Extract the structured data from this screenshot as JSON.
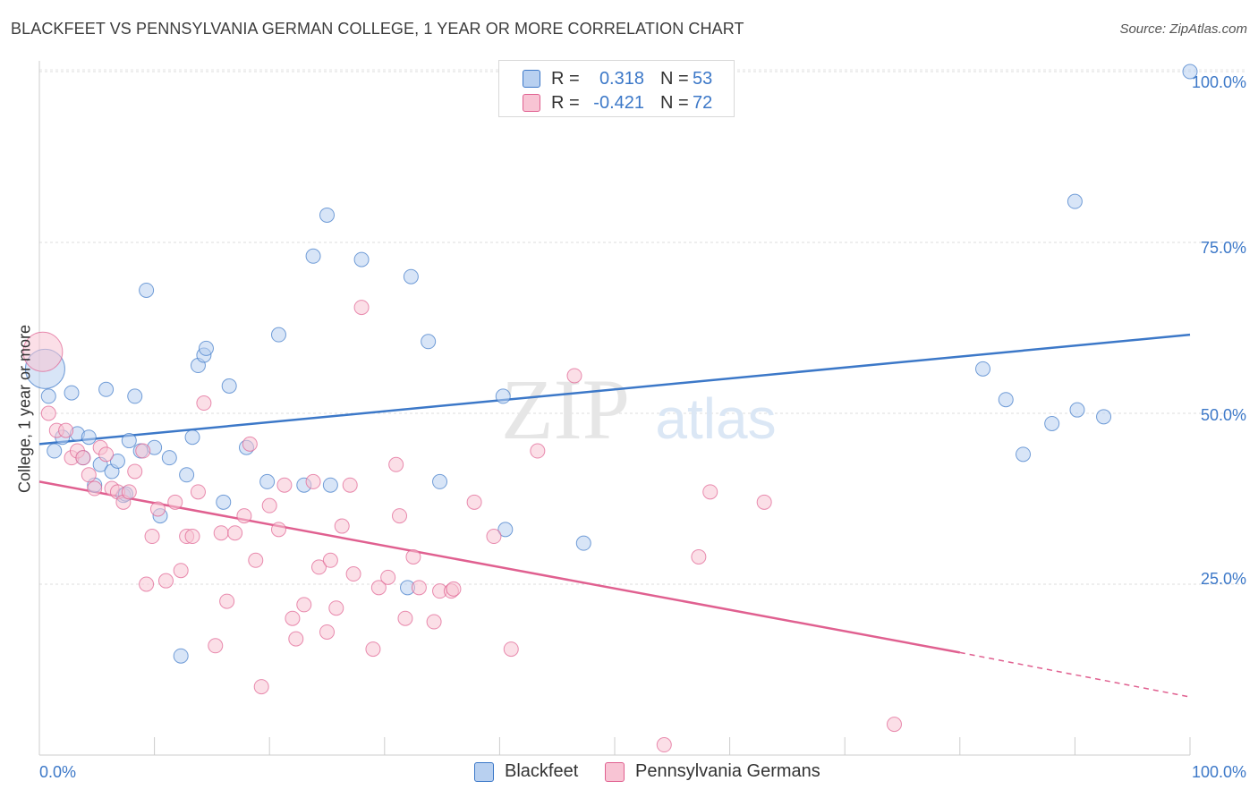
{
  "title": "BLACKFEET VS PENNSYLVANIA GERMAN COLLEGE, 1 YEAR OR MORE CORRELATION CHART",
  "source": "Source: ZipAtlas.com",
  "watermark": {
    "zip": "ZIP",
    "atlas": "atlas"
  },
  "legend": {
    "r_label": "R =",
    "n_label": "N =",
    "rows": [
      {
        "name": "Blackfeet",
        "r": "0.318",
        "n": "53"
      },
      {
        "name": "Pennsylvania Germans",
        "r": "-0.421",
        "n": "72"
      }
    ]
  },
  "chart_data": {
    "type": "scatter",
    "title": "BLACKFEET VS PENNSYLVANIA GERMAN COLLEGE, 1 YEAR OR MORE CORRELATION CHART",
    "xlabel": "",
    "ylabel": "College, 1 year or more",
    "xlim": [
      0,
      100
    ],
    "ylim": [
      0,
      100
    ],
    "x_tick_labels": [
      "0.0%",
      "100.0%"
    ],
    "y_tick_labels": [
      "25.0%",
      "50.0%",
      "75.0%",
      "100.0%"
    ],
    "y_tick_values": [
      25,
      50,
      75,
      100
    ],
    "grid": true,
    "colors": {
      "blackfeet": "#3c78c8",
      "blackfeet_fill": "#b8d0f0",
      "penn": "#e06090",
      "penn_fill": "#f8c4d4",
      "axis_text": "#3c78c8"
    },
    "series": [
      {
        "name": "Blackfeet",
        "trend": {
          "x0": 0,
          "y0": 45.5,
          "x1": 100,
          "y1": 61.5
        },
        "points": [
          [
            0.5,
            56.5
          ],
          [
            0.8,
            52.5
          ],
          [
            1.3,
            44.5
          ],
          [
            2,
            46.5
          ],
          [
            2.8,
            53
          ],
          [
            3.3,
            47
          ],
          [
            3.8,
            43.5
          ],
          [
            4.3,
            46.5
          ],
          [
            4.8,
            39.5
          ],
          [
            5.3,
            42.5
          ],
          [
            5.8,
            53.5
          ],
          [
            6.3,
            41.5
          ],
          [
            6.8,
            43
          ],
          [
            7.3,
            38
          ],
          [
            7.8,
            46
          ],
          [
            8.3,
            52.5
          ],
          [
            8.8,
            44.5
          ],
          [
            9.3,
            68
          ],
          [
            10,
            45
          ],
          [
            10.5,
            35
          ],
          [
            11.3,
            43.5
          ],
          [
            12.3,
            14.5
          ],
          [
            12.8,
            41
          ],
          [
            13.3,
            46.5
          ],
          [
            13.8,
            57
          ],
          [
            14.3,
            58.5
          ],
          [
            14.5,
            59.5
          ],
          [
            16,
            37
          ],
          [
            16.5,
            54
          ],
          [
            18,
            45
          ],
          [
            19.8,
            40
          ],
          [
            20.8,
            61.5
          ],
          [
            23,
            39.5
          ],
          [
            23.8,
            73
          ],
          [
            25,
            79
          ],
          [
            25.3,
            39.5
          ],
          [
            28,
            72.5
          ],
          [
            32,
            24.5
          ],
          [
            32.3,
            70
          ],
          [
            33.8,
            60.5
          ],
          [
            34.8,
            40
          ],
          [
            40.3,
            52.5
          ],
          [
            40.5,
            33
          ],
          [
            47.3,
            31
          ],
          [
            82,
            56.5
          ],
          [
            84,
            52
          ],
          [
            85.5,
            44
          ],
          [
            88,
            48.5
          ],
          [
            90,
            81
          ],
          [
            90.2,
            50.5
          ],
          [
            92.5,
            49.5
          ],
          [
            100,
            100
          ],
          [
            7.5,
            38.2
          ]
        ]
      },
      {
        "name": "Pennsylvania Germans",
        "trend": {
          "x0": 0,
          "y0": 40,
          "x1": 80,
          "y1": 15,
          "dash_to": {
            "x": 100,
            "y": 8.5
          }
        },
        "points": [
          [
            0.3,
            59
          ],
          [
            0.8,
            50
          ],
          [
            1.5,
            47.5
          ],
          [
            2.3,
            47.5
          ],
          [
            2.8,
            43.5
          ],
          [
            3.3,
            44.5
          ],
          [
            3.8,
            43.5
          ],
          [
            4.3,
            41
          ],
          [
            4.8,
            39
          ],
          [
            5.3,
            45
          ],
          [
            5.8,
            44
          ],
          [
            6.3,
            39
          ],
          [
            6.8,
            38.5
          ],
          [
            7.3,
            37
          ],
          [
            7.8,
            38.5
          ],
          [
            8.3,
            41.5
          ],
          [
            9,
            44.5
          ],
          [
            9.3,
            25
          ],
          [
            9.8,
            32
          ],
          [
            10.3,
            36
          ],
          [
            11,
            25.5
          ],
          [
            11.8,
            37
          ],
          [
            12.3,
            27
          ],
          [
            12.8,
            32
          ],
          [
            13.3,
            32
          ],
          [
            13.8,
            38.5
          ],
          [
            14.3,
            51.5
          ],
          [
            15.3,
            16
          ],
          [
            15.8,
            32.5
          ],
          [
            16.3,
            22.5
          ],
          [
            17,
            32.5
          ],
          [
            17.8,
            35
          ],
          [
            18.3,
            45.5
          ],
          [
            18.8,
            28.5
          ],
          [
            19.3,
            10
          ],
          [
            20,
            36.5
          ],
          [
            20.8,
            33
          ],
          [
            21.3,
            39.5
          ],
          [
            22,
            20
          ],
          [
            22.3,
            17
          ],
          [
            23,
            22
          ],
          [
            23.8,
            40
          ],
          [
            24.3,
            27.5
          ],
          [
            25,
            18
          ],
          [
            25.3,
            28.5
          ],
          [
            25.8,
            21.5
          ],
          [
            26.3,
            33.5
          ],
          [
            27,
            39.5
          ],
          [
            27.3,
            26.5
          ],
          [
            28,
            65.5
          ],
          [
            29,
            15.5
          ],
          [
            29.5,
            24.5
          ],
          [
            30.3,
            26
          ],
          [
            31,
            42.5
          ],
          [
            31.3,
            35
          ],
          [
            31.8,
            20
          ],
          [
            32.5,
            29
          ],
          [
            33,
            24.5
          ],
          [
            34.3,
            19.5
          ],
          [
            34.8,
            24
          ],
          [
            35.8,
            24
          ],
          [
            37.8,
            37
          ],
          [
            39.5,
            32
          ],
          [
            41,
            15.5
          ],
          [
            43.3,
            44.5
          ],
          [
            46.5,
            55.5
          ],
          [
            54.3,
            1.5
          ],
          [
            57.3,
            29
          ],
          [
            58.3,
            38.5
          ],
          [
            63,
            37
          ],
          [
            74.3,
            4.5
          ],
          [
            36,
            24.3
          ]
        ]
      }
    ]
  }
}
